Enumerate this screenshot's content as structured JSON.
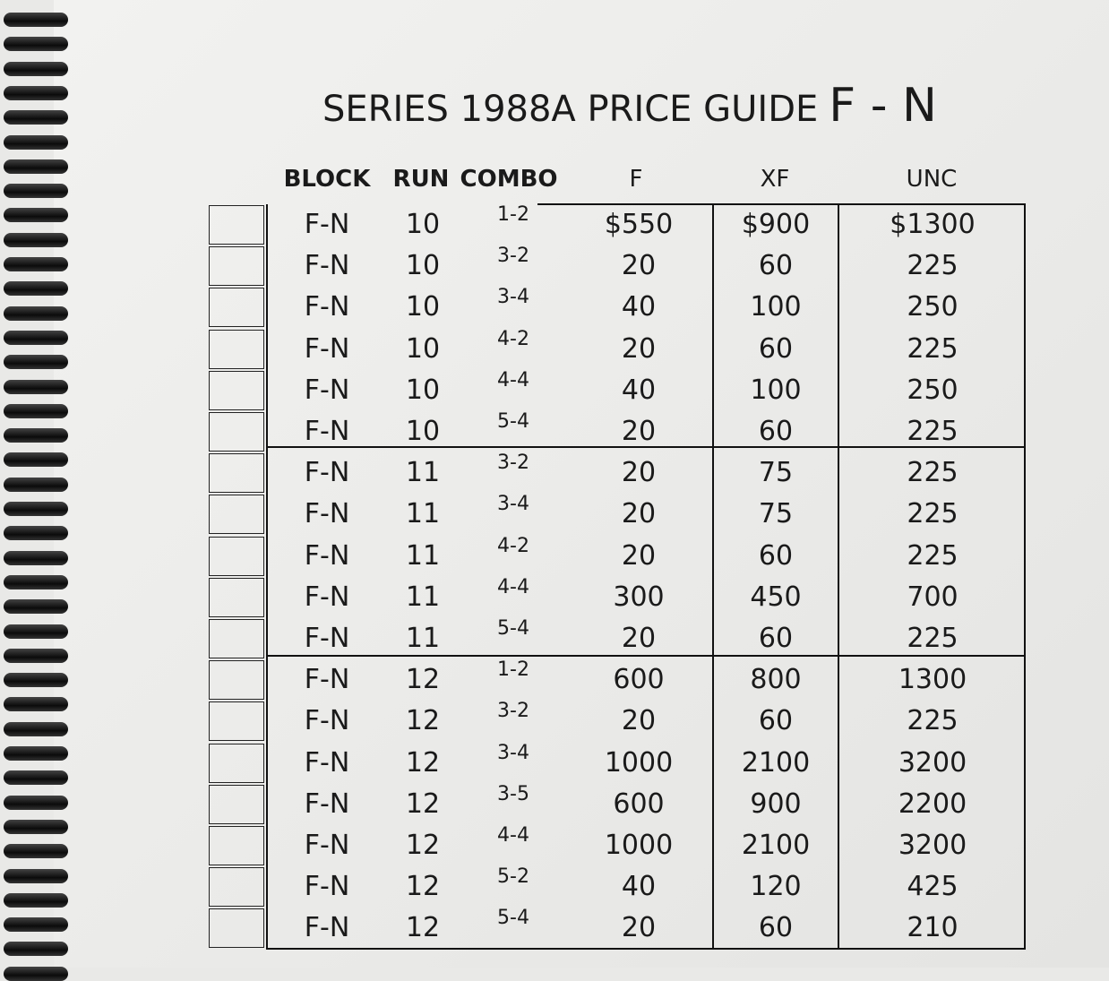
{
  "title": "SERIES 1988A PRICE GUIDE",
  "title_block": "F - N",
  "headers": {
    "block": "BLOCK",
    "run": "RUN",
    "combo": "COMBO",
    "f": "F",
    "xf": "XF",
    "unc": "UNC"
  },
  "rows": [
    {
      "block": "F-N",
      "run": "10",
      "combo": "1-2",
      "f": "$550",
      "xf": "$900",
      "unc": "$1300"
    },
    {
      "block": "F-N",
      "run": "10",
      "combo": "3-2",
      "f": "20",
      "xf": "60",
      "unc": "225"
    },
    {
      "block": "F-N",
      "run": "10",
      "combo": "3-4",
      "f": "40",
      "xf": "100",
      "unc": "250"
    },
    {
      "block": "F-N",
      "run": "10",
      "combo": "4-2",
      "f": "20",
      "xf": "60",
      "unc": "225"
    },
    {
      "block": "F-N",
      "run": "10",
      "combo": "4-4",
      "f": "40",
      "xf": "100",
      "unc": "250"
    },
    {
      "block": "F-N",
      "run": "10",
      "combo": "5-4",
      "f": "20",
      "xf": "60",
      "unc": "225"
    },
    {
      "block": "F-N",
      "run": "11",
      "combo": "3-2",
      "f": "20",
      "xf": "75",
      "unc": "225"
    },
    {
      "block": "F-N",
      "run": "11",
      "combo": "3-4",
      "f": "20",
      "xf": "75",
      "unc": "225"
    },
    {
      "block": "F-N",
      "run": "11",
      "combo": "4-2",
      "f": "20",
      "xf": "60",
      "unc": "225"
    },
    {
      "block": "F-N",
      "run": "11",
      "combo": "4-4",
      "f": "300",
      "xf": "450",
      "unc": "700"
    },
    {
      "block": "F-N",
      "run": "11",
      "combo": "5-4",
      "f": "20",
      "xf": "60",
      "unc": "225"
    },
    {
      "block": "F-N",
      "run": "12",
      "combo": "1-2",
      "f": "600",
      "xf": "800",
      "unc": "1300"
    },
    {
      "block": "F-N",
      "run": "12",
      "combo": "3-2",
      "f": "20",
      "xf": "60",
      "unc": "225"
    },
    {
      "block": "F-N",
      "run": "12",
      "combo": "3-4",
      "f": "1000",
      "xf": "2100",
      "unc": "3200"
    },
    {
      "block": "F-N",
      "run": "12",
      "combo": "3-5",
      "f": "600",
      "xf": "900",
      "unc": "2200"
    },
    {
      "block": "F-N",
      "run": "12",
      "combo": "4-4",
      "f": "1000",
      "xf": "2100",
      "unc": "3200"
    },
    {
      "block": "F-N",
      "run": "12",
      "combo": "5-2",
      "f": "40",
      "xf": "120",
      "unc": "425"
    },
    {
      "block": "F-N",
      "run": "12",
      "combo": "5-4",
      "f": "20",
      "xf": "60",
      "unc": "210"
    }
  ]
}
